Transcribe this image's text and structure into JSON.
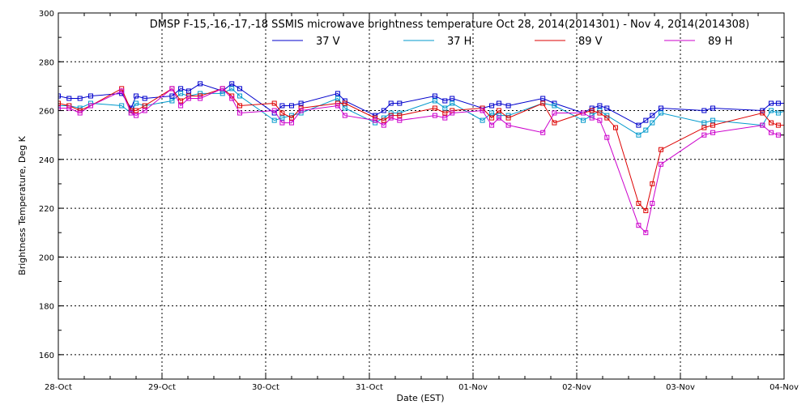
{
  "chart_data": {
    "type": "line",
    "title": "DMSP F-15,-16,-17,-18 SSMIS microwave brightness temperature Oct 28, 2014(2014301) - Nov  4, 2014(2014308)",
    "xlabel": "Date (EST)",
    "ylabel": "Brightness Temperature, Deg K",
    "xlim": [
      "28-Oct 00:00",
      "04-Nov 00:00"
    ],
    "ylim": [
      150,
      300
    ],
    "yticks": [
      160,
      180,
      200,
      220,
      240,
      260,
      280,
      300
    ],
    "xticks": [
      "28-Oct",
      "29-Oct",
      "30-Oct",
      "31-Oct",
      "01-Nov",
      "02-Nov",
      "03-Nov",
      "04-Nov"
    ],
    "grid": true,
    "legend": "top-center",
    "series": [
      {
        "name": "37 V",
        "color": "#0000cc",
        "points": [
          [
            "28-Oct 00:00",
            266
          ],
          [
            "28-Oct 02:30",
            265
          ],
          [
            "28-Oct 05:00",
            265
          ],
          [
            "28-Oct 07:30",
            266
          ],
          [
            "28-Oct 14:40",
            267
          ],
          [
            "28-Oct 16:50",
            261
          ],
          [
            "28-Oct 18:00",
            266
          ],
          [
            "28-Oct 20:00",
            265
          ],
          [
            "29-Oct 02:20",
            266
          ],
          [
            "29-Oct 04:20",
            269
          ],
          [
            "29-Oct 06:10",
            268
          ],
          [
            "29-Oct 08:50",
            271
          ],
          [
            "29-Oct 14:00",
            268
          ],
          [
            "29-Oct 16:10",
            271
          ],
          [
            "29-Oct 18:00",
            269
          ],
          [
            "30-Oct 02:00",
            259
          ],
          [
            "30-Oct 03:50",
            262
          ],
          [
            "30-Oct 06:00",
            262
          ],
          [
            "30-Oct 08:10",
            263
          ],
          [
            "30-Oct 16:40",
            267
          ],
          [
            "30-Oct 18:20",
            264
          ],
          [
            "31-Oct 01:20",
            258
          ],
          [
            "31-Oct 03:20",
            260
          ],
          [
            "31-Oct 05:00",
            263
          ],
          [
            "31-Oct 07:00",
            263
          ],
          [
            "31-Oct 15:10",
            266
          ],
          [
            "31-Oct 17:30",
            264
          ],
          [
            "31-Oct 19:10",
            265
          ],
          [
            "01-Nov 02:10",
            261
          ],
          [
            "01-Nov 04:20",
            262
          ],
          [
            "01-Nov 06:00",
            263
          ],
          [
            "01-Nov 08:10",
            262
          ],
          [
            "01-Nov 16:10",
            265
          ],
          [
            "01-Nov 18:50",
            263
          ],
          [
            "02-Nov 01:30",
            259
          ],
          [
            "02-Nov 03:30",
            261
          ],
          [
            "02-Nov 05:20",
            262
          ],
          [
            "02-Nov 07:00",
            261
          ],
          [
            "02-Nov 14:20",
            254
          ],
          [
            "02-Nov 16:00",
            256
          ],
          [
            "02-Nov 17:30",
            258
          ],
          [
            "02-Nov 19:30",
            261
          ],
          [
            "03-Nov 05:30",
            260
          ],
          [
            "03-Nov 07:30",
            261
          ],
          [
            "03-Nov 19:00",
            260
          ],
          [
            "03-Nov 21:00",
            263
          ],
          [
            "03-Nov 22:40",
            263
          ],
          [
            "04-Nov 00:40",
            263
          ],
          [
            "04-Nov 05:30",
            260
          ]
        ]
      },
      {
        "name": "37 H",
        "color": "#0099cc",
        "points": [
          [
            "28-Oct 00:00",
            262
          ],
          [
            "28-Oct 02:30",
            262
          ],
          [
            "28-Oct 05:00",
            261
          ],
          [
            "28-Oct 07:30",
            263
          ],
          [
            "28-Oct 14:40",
            262
          ],
          [
            "28-Oct 16:50",
            259
          ],
          [
            "28-Oct 18:00",
            263
          ],
          [
            "28-Oct 20:00",
            262
          ],
          [
            "29-Oct 02:20",
            264
          ],
          [
            "29-Oct 04:20",
            267
          ],
          [
            "29-Oct 06:10",
            266
          ],
          [
            "29-Oct 08:50",
            267
          ],
          [
            "29-Oct 14:00",
            267
          ],
          [
            "29-Oct 16:10",
            269
          ],
          [
            "29-Oct 18:00",
            266
          ],
          [
            "30-Oct 02:00",
            256
          ],
          [
            "30-Oct 03:50",
            257
          ],
          [
            "30-Oct 06:00",
            258
          ],
          [
            "30-Oct 08:10",
            259
          ],
          [
            "30-Oct 16:40",
            265
          ],
          [
            "30-Oct 18:20",
            261
          ],
          [
            "31-Oct 01:20",
            255
          ],
          [
            "31-Oct 03:20",
            257
          ],
          [
            "31-Oct 05:00",
            259
          ],
          [
            "31-Oct 07:00",
            259
          ],
          [
            "31-Oct 15:10",
            264
          ],
          [
            "31-Oct 17:30",
            261
          ],
          [
            "31-Oct 19:10",
            263
          ],
          [
            "01-Nov 02:10",
            256
          ],
          [
            "01-Nov 04:20",
            259
          ],
          [
            "01-Nov 06:00",
            258
          ],
          [
            "01-Nov 08:10",
            258
          ],
          [
            "01-Nov 16:10",
            263
          ],
          [
            "01-Nov 18:50",
            262
          ],
          [
            "02-Nov 01:30",
            256
          ],
          [
            "02-Nov 03:30",
            258
          ],
          [
            "02-Nov 05:20",
            260
          ],
          [
            "02-Nov 07:00",
            258
          ],
          [
            "02-Nov 14:20",
            250
          ],
          [
            "02-Nov 16:00",
            252
          ],
          [
            "02-Nov 17:30",
            255
          ],
          [
            "02-Nov 19:30",
            259
          ],
          [
            "03-Nov 05:30",
            255
          ],
          [
            "03-Nov 07:30",
            256
          ],
          [
            "03-Nov 19:00",
            254
          ],
          [
            "03-Nov 21:00",
            260
          ],
          [
            "03-Nov 22:40",
            259
          ],
          [
            "04-Nov 00:40",
            260
          ],
          [
            "04-Nov 05:30",
            255
          ]
        ]
      },
      {
        "name": "89 V",
        "color": "#dd0000",
        "points": [
          [
            "28-Oct 00:00",
            263
          ],
          [
            "28-Oct 02:30",
            262
          ],
          [
            "28-Oct 05:00",
            260
          ],
          [
            "28-Oct 07:30",
            262
          ],
          [
            "28-Oct 14:40",
            269
          ],
          [
            "28-Oct 16:50",
            260
          ],
          [
            "28-Oct 18:00",
            260
          ],
          [
            "28-Oct 20:00",
            262
          ],
          [
            "29-Oct 02:20",
            269
          ],
          [
            "29-Oct 04:20",
            264
          ],
          [
            "29-Oct 06:10",
            266
          ],
          [
            "29-Oct 08:50",
            266
          ],
          [
            "29-Oct 14:00",
            269
          ],
          [
            "29-Oct 16:10",
            266
          ],
          [
            "29-Oct 18:00",
            262
          ],
          [
            "30-Oct 02:00",
            263
          ],
          [
            "30-Oct 03:50",
            259
          ],
          [
            "30-Oct 06:00",
            257
          ],
          [
            "30-Oct 08:10",
            261
          ],
          [
            "30-Oct 16:40",
            263
          ],
          [
            "30-Oct 18:20",
            263
          ],
          [
            "31-Oct 01:20",
            257
          ],
          [
            "31-Oct 03:20",
            256
          ],
          [
            "31-Oct 05:00",
            258
          ],
          [
            "31-Oct 07:00",
            258
          ],
          [
            "31-Oct 15:10",
            261
          ],
          [
            "31-Oct 17:30",
            259
          ],
          [
            "31-Oct 19:10",
            260
          ],
          [
            "01-Nov 02:10",
            261
          ],
          [
            "01-Nov 04:20",
            257
          ],
          [
            "01-Nov 06:00",
            260
          ],
          [
            "01-Nov 08:10",
            257
          ],
          [
            "01-Nov 16:10",
            263
          ],
          [
            "01-Nov 18:50",
            255
          ],
          [
            "02-Nov 01:30",
            259
          ],
          [
            "02-Nov 03:30",
            260
          ],
          [
            "02-Nov 05:20",
            259
          ],
          [
            "02-Nov 07:00",
            257
          ],
          [
            "02-Nov 09:00",
            253
          ],
          [
            "02-Nov 14:20",
            222
          ],
          [
            "02-Nov 16:00",
            219
          ],
          [
            "02-Nov 17:30",
            230
          ],
          [
            "02-Nov 19:30",
            244
          ],
          [
            "03-Nov 05:30",
            253
          ],
          [
            "03-Nov 07:30",
            254
          ],
          [
            "03-Nov 19:00",
            259
          ],
          [
            "03-Nov 21:00",
            255
          ],
          [
            "03-Nov 22:40",
            254
          ],
          [
            "04-Nov 00:40",
            254
          ],
          [
            "04-Nov 05:30",
            252
          ]
        ]
      },
      {
        "name": "89 H",
        "color": "#cc00cc",
        "points": [
          [
            "28-Oct 00:00",
            261
          ],
          [
            "28-Oct 02:30",
            261
          ],
          [
            "28-Oct 05:00",
            259
          ],
          [
            "28-Oct 07:30",
            262
          ],
          [
            "28-Oct 14:40",
            268
          ],
          [
            "28-Oct 16:50",
            259
          ],
          [
            "28-Oct 18:00",
            258
          ],
          [
            "28-Oct 20:00",
            260
          ],
          [
            "29-Oct 02:20",
            269
          ],
          [
            "29-Oct 04:20",
            262
          ],
          [
            "29-Oct 06:10",
            265
          ],
          [
            "29-Oct 08:50",
            265
          ],
          [
            "29-Oct 14:00",
            269
          ],
          [
            "29-Oct 16:10",
            265
          ],
          [
            "29-Oct 18:00",
            259
          ],
          [
            "30-Oct 02:00",
            260
          ],
          [
            "30-Oct 03:50",
            255
          ],
          [
            "30-Oct 06:00",
            255
          ],
          [
            "30-Oct 08:10",
            260
          ],
          [
            "30-Oct 16:40",
            262
          ],
          [
            "30-Oct 18:20",
            258
          ],
          [
            "31-Oct 01:20",
            256
          ],
          [
            "31-Oct 03:20",
            254
          ],
          [
            "31-Oct 05:00",
            257
          ],
          [
            "31-Oct 07:00",
            256
          ],
          [
            "31-Oct 15:10",
            258
          ],
          [
            "31-Oct 17:30",
            257
          ],
          [
            "31-Oct 19:10",
            259
          ],
          [
            "01-Nov 02:10",
            260
          ],
          [
            "01-Nov 04:20",
            254
          ],
          [
            "01-Nov 06:00",
            257
          ],
          [
            "01-Nov 08:10",
            254
          ],
          [
            "01-Nov 16:10",
            251
          ],
          [
            "01-Nov 18:50",
            259
          ],
          [
            "02-Nov 01:30",
            259
          ],
          [
            "02-Nov 03:30",
            257
          ],
          [
            "02-Nov 05:20",
            256
          ],
          [
            "02-Nov 07:00",
            249
          ],
          [
            "02-Nov 14:20",
            213
          ],
          [
            "02-Nov 16:00",
            210
          ],
          [
            "02-Nov 17:30",
            222
          ],
          [
            "02-Nov 19:30",
            238
          ],
          [
            "03-Nov 05:30",
            250
          ],
          [
            "03-Nov 07:30",
            251
          ],
          [
            "03-Nov 19:00",
            254
          ],
          [
            "03-Nov 21:00",
            251
          ],
          [
            "03-Nov 22:40",
            250
          ],
          [
            "04-Nov 00:40",
            250
          ],
          [
            "04-Nov 05:30",
            246
          ]
        ]
      }
    ]
  }
}
